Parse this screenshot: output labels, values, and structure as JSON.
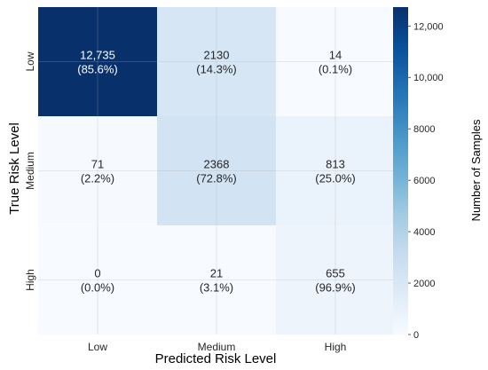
{
  "chart_data": {
    "type": "heatmap",
    "title": "",
    "xlabel": "Predicted Risk Level",
    "ylabel": "True Risk Level",
    "x_categories": [
      "Low",
      "Medium",
      "High"
    ],
    "y_categories": [
      "Low",
      "Medium",
      "High"
    ],
    "values": [
      [
        12735,
        2130,
        14
      ],
      [
        71,
        2368,
        813
      ],
      [
        0,
        21,
        655
      ]
    ],
    "value_labels": [
      [
        "12,735",
        "2130",
        "14"
      ],
      [
        "71",
        "2368",
        "813"
      ],
      [
        "0",
        "21",
        "655"
      ]
    ],
    "percent_labels": [
      [
        "(85.6%)",
        "(14.3%)",
        "(0.1%)"
      ],
      [
        "(2.2%)",
        "(72.8%)",
        "(25.0%)"
      ],
      [
        "(0.0%)",
        "(3.1%)",
        "(96.9%)"
      ]
    ],
    "colorbar": {
      "label": "Number of Samples",
      "range": [
        0,
        12735
      ],
      "ticks": [
        0,
        2000,
        4000,
        6000,
        8000,
        10000,
        12000
      ],
      "tick_labels": [
        "0",
        "2000",
        "4000",
        "6000",
        "8000",
        "10,000",
        "12,000"
      ]
    },
    "colormap": "Blues",
    "grid": true
  }
}
